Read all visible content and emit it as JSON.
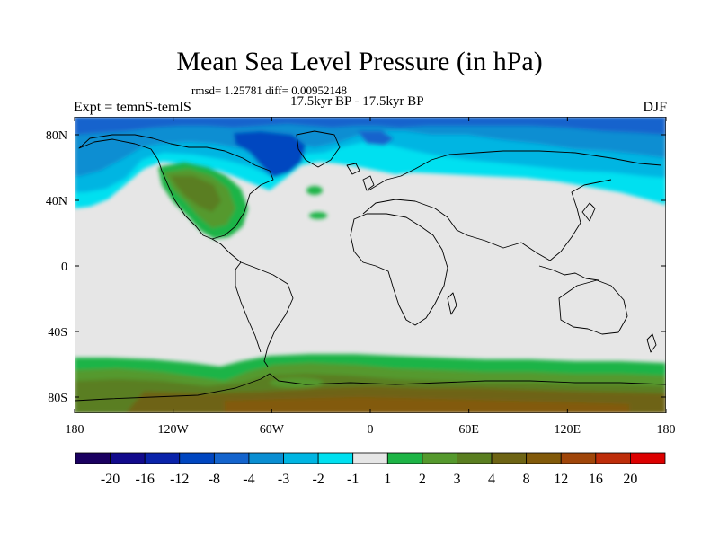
{
  "title": "Mean Sea Level Pressure (in hPa)",
  "stats": "rmsd= 1.25781 diff= 0.00952148",
  "subtitle": "17.5kyr BP - 17.5kyr BP",
  "left_label": "Expt = temnS-temlS",
  "right_label": "DJF",
  "x_ticks": [
    "180",
    "120W",
    "60W",
    "0",
    "60E",
    "120E",
    "180"
  ],
  "y_ticks": [
    "80N",
    "40N",
    "0",
    "40S",
    "80S"
  ],
  "colorbar": {
    "colors": [
      "#1a0060",
      "#120a8c",
      "#0a23aa",
      "#0046c0",
      "#1464cd",
      "#0a8ed2",
      "#00b5e2",
      "#00e0f0",
      "#e6e6e6",
      "#1eb446",
      "#55992d",
      "#5a7e20",
      "#6e6414",
      "#825a0a",
      "#a0460a",
      "#be2d0a",
      "#dc0000"
    ],
    "labels": [
      "-20",
      "-16",
      "-12",
      "-8",
      "-4",
      "-3",
      "-2",
      "-1",
      "1",
      "2",
      "3",
      "4",
      "8",
      "12",
      "16",
      "20"
    ]
  }
}
